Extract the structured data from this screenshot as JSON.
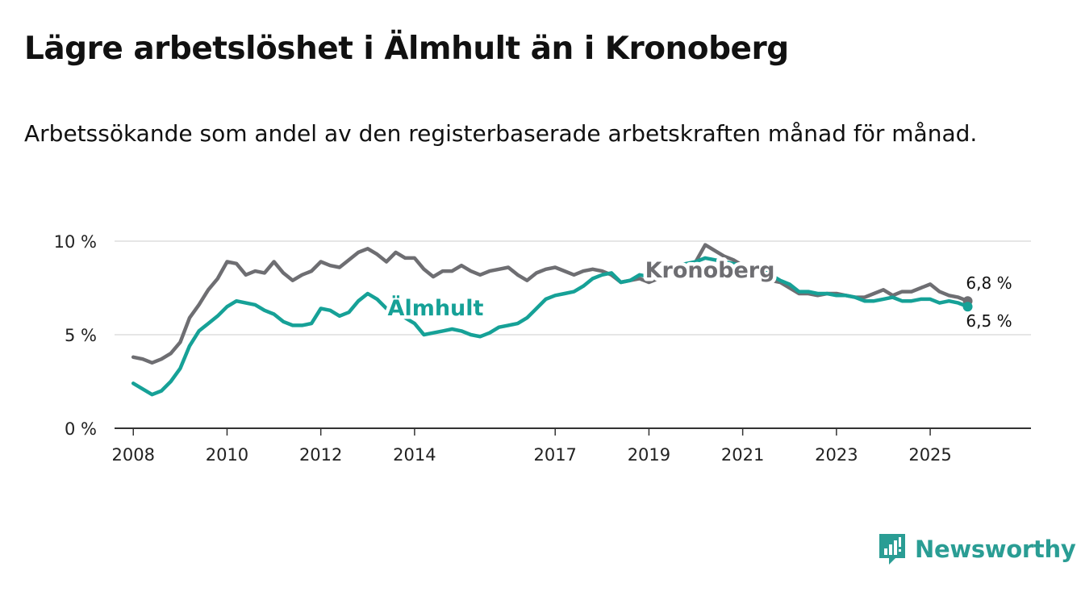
{
  "title": "Lägre arbetslöshet i Älmhult än i Kronoberg",
  "subtitle": "Arbetssökande som andel av den registerbaserade arbetskraften månad för månad.",
  "brand": {
    "name": "Newsworthy",
    "icon": "newsworthy-logo-icon"
  },
  "colors": {
    "almhult": "#16a197",
    "kronoberg": "#6e6e72",
    "grid": "#dddddd",
    "axis": "#333333",
    "text": "#111111"
  },
  "chart_data": {
    "type": "line",
    "ylim": [
      0,
      10
    ],
    "xlim": [
      2007.6,
      2027.15
    ],
    "y_ticks": [
      0,
      5,
      10
    ],
    "y_tick_labels": [
      "0 %",
      "5 %",
      "10 %"
    ],
    "x_ticks": [
      2008,
      2010,
      2012,
      2014,
      2017,
      2019,
      2021,
      2023,
      2025
    ],
    "x_tick_labels": [
      "2008",
      "2010",
      "2012",
      "2014",
      "2017",
      "2019",
      "2021",
      "2023",
      "2025"
    ],
    "series": [
      {
        "name": "Kronoberg",
        "label": "Kronoberg",
        "end_label": "6,8 %",
        "x": [
          2008.0,
          2008.2,
          2008.4,
          2008.6,
          2008.8,
          2009.0,
          2009.2,
          2009.4,
          2009.6,
          2009.8,
          2010.0,
          2010.2,
          2010.4,
          2010.6,
          2010.8,
          2011.0,
          2011.2,
          2011.4,
          2011.6,
          2011.8,
          2012.0,
          2012.2,
          2012.4,
          2012.6,
          2012.8,
          2013.0,
          2013.2,
          2013.4,
          2013.6,
          2013.8,
          2014.0,
          2014.2,
          2014.4,
          2014.6,
          2014.8,
          2015.0,
          2015.2,
          2015.4,
          2015.6,
          2015.8,
          2016.0,
          2016.2,
          2016.4,
          2016.6,
          2016.8,
          2017.0,
          2017.2,
          2017.4,
          2017.6,
          2017.8,
          2018.0,
          2018.2,
          2018.4,
          2018.6,
          2018.8,
          2019.0,
          2019.2,
          2019.4,
          2019.6,
          2019.8,
          2020.0,
          2020.2,
          2020.4,
          2020.6,
          2020.8,
          2021.0,
          2021.2,
          2021.4,
          2021.6,
          2021.8,
          2022.0,
          2022.2,
          2022.4,
          2022.6,
          2022.8,
          2023.0,
          2023.2,
          2023.4,
          2023.6,
          2023.8,
          2024.0,
          2024.2,
          2024.4,
          2024.6,
          2024.8,
          2025.0,
          2025.2,
          2025.4,
          2025.6,
          2025.8
        ],
        "values": [
          3.8,
          3.7,
          3.5,
          3.7,
          4.0,
          4.6,
          5.9,
          6.6,
          7.4,
          8.0,
          8.9,
          8.8,
          8.2,
          8.4,
          8.3,
          8.9,
          8.3,
          7.9,
          8.2,
          8.4,
          8.9,
          8.7,
          8.6,
          9.0,
          9.4,
          9.6,
          9.3,
          8.9,
          9.4,
          9.1,
          9.1,
          8.5,
          8.1,
          8.4,
          8.4,
          8.7,
          8.4,
          8.2,
          8.4,
          8.5,
          8.6,
          8.2,
          7.9,
          8.3,
          8.5,
          8.6,
          8.4,
          8.2,
          8.4,
          8.5,
          8.4,
          8.2,
          7.8,
          7.9,
          8.0,
          7.8,
          8.0,
          8.2,
          8.3,
          8.5,
          8.9,
          9.8,
          9.5,
          9.2,
          9.0,
          8.7,
          8.6,
          8.3,
          7.9,
          7.8,
          7.5,
          7.2,
          7.2,
          7.1,
          7.2,
          7.2,
          7.1,
          7.0,
          7.0,
          7.2,
          7.4,
          7.1,
          7.3,
          7.3,
          7.5,
          7.7,
          7.3,
          7.1,
          7.0,
          6.8
        ]
      },
      {
        "name": "Älmhult",
        "label": "Älmhult",
        "end_label": "6,5 %",
        "x": [
          2008.0,
          2008.2,
          2008.4,
          2008.6,
          2008.8,
          2009.0,
          2009.2,
          2009.4,
          2009.6,
          2009.8,
          2010.0,
          2010.2,
          2010.4,
          2010.6,
          2010.8,
          2011.0,
          2011.2,
          2011.4,
          2011.6,
          2011.8,
          2012.0,
          2012.2,
          2012.4,
          2012.6,
          2012.8,
          2013.0,
          2013.2,
          2013.4,
          2013.6,
          2013.8,
          2014.0,
          2014.2,
          2014.4,
          2014.6,
          2014.8,
          2015.0,
          2015.2,
          2015.4,
          2015.6,
          2015.8,
          2016.0,
          2016.2,
          2016.4,
          2016.6,
          2016.8,
          2017.0,
          2017.2,
          2017.4,
          2017.6,
          2017.8,
          2018.0,
          2018.2,
          2018.4,
          2018.6,
          2018.8,
          2019.0,
          2019.2,
          2019.4,
          2019.6,
          2019.8,
          2020.0,
          2020.2,
          2020.4,
          2020.6,
          2020.8,
          2021.0,
          2021.2,
          2021.4,
          2021.6,
          2021.8,
          2022.0,
          2022.2,
          2022.4,
          2022.6,
          2022.8,
          2023.0,
          2023.2,
          2023.4,
          2023.6,
          2023.8,
          2024.0,
          2024.2,
          2024.4,
          2024.6,
          2024.8,
          2025.0,
          2025.2,
          2025.4,
          2025.6,
          2025.8
        ],
        "values": [
          2.4,
          2.1,
          1.8,
          2.0,
          2.5,
          3.2,
          4.4,
          5.2,
          5.6,
          6.0,
          6.5,
          6.8,
          6.7,
          6.6,
          6.3,
          6.1,
          5.7,
          5.5,
          5.5,
          5.6,
          6.4,
          6.3,
          6.0,
          6.2,
          6.8,
          7.2,
          6.9,
          6.4,
          6.2,
          5.9,
          5.6,
          5.0,
          5.1,
          5.2,
          5.3,
          5.2,
          5.0,
          4.9,
          5.1,
          5.4,
          5.5,
          5.6,
          5.9,
          6.4,
          6.9,
          7.1,
          7.2,
          7.3,
          7.6,
          8.0,
          8.2,
          8.3,
          7.8,
          7.9,
          8.2,
          8.1,
          8.3,
          8.5,
          8.7,
          8.8,
          8.9,
          9.1,
          9.0,
          8.9,
          8.8,
          8.7,
          8.7,
          8.6,
          8.2,
          7.9,
          7.7,
          7.3,
          7.3,
          7.2,
          7.2,
          7.1,
          7.1,
          7.0,
          6.8,
          6.8,
          6.9,
          7.0,
          6.8,
          6.8,
          6.9,
          6.9,
          6.7,
          6.8,
          6.7,
          6.5
        ]
      }
    ]
  }
}
